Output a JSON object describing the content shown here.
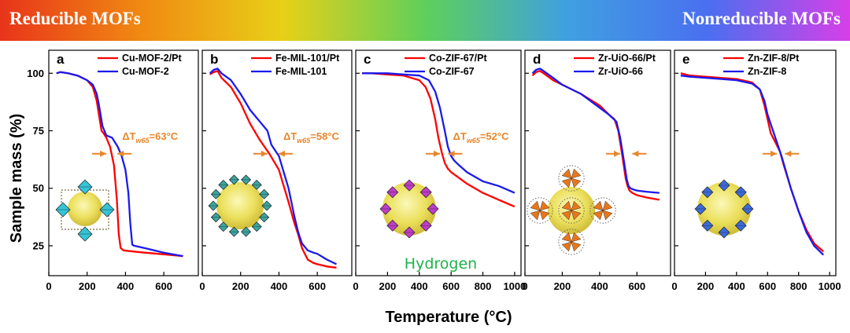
{
  "banner": {
    "left_label": "Reducible MOFs",
    "right_label": "Nonreducible MOFs",
    "gradient": [
      "#e8341a",
      "#f08a12",
      "#e8d018",
      "#5ed05a",
      "#3fa0e0",
      "#4a6ff0",
      "#d73fe8"
    ]
  },
  "colors": {
    "pt_series": "#ff0000",
    "plain_series": "#1a1aee",
    "delta": "#e8862a",
    "hydrogen": "#1fb24a"
  },
  "shared_y_axis_label": "Sample mass (%)",
  "shared_x_axis_label": "Temperature (°C)",
  "gas_label": "Hydrogen",
  "chart_data": [
    {
      "panel": "a",
      "type": "line",
      "xlim": [
        0,
        780
      ],
      "ylim": [
        12,
        110
      ],
      "xticks": [
        0,
        200,
        400,
        600
      ],
      "yticks": [
        25,
        50,
        75,
        100
      ],
      "delta_t": {
        "label": "ΔT",
        "sub": "w65",
        "value": "=63°C",
        "y": 65,
        "x_left": 300,
        "x_right": 358
      },
      "series": [
        {
          "name": "Cu-MOF-2/Pt",
          "x": [
            40,
            60,
            100,
            150,
            200,
            230,
            250,
            265,
            275,
            285,
            300,
            320,
            340,
            355,
            365,
            375,
            390,
            420,
            500,
            600,
            700
          ],
          "y": [
            100,
            100.5,
            100,
            99,
            97,
            94,
            88,
            80,
            75,
            74,
            72,
            68,
            60,
            45,
            30,
            24,
            23,
            22.7,
            22,
            21.3,
            20.5
          ]
        },
        {
          "name": "Cu-MOF-2",
          "x": [
            40,
            60,
            100,
            150,
            200,
            230,
            250,
            260,
            270,
            280,
            300,
            330,
            360,
            380,
            400,
            415,
            425,
            435,
            445,
            500,
            600,
            700
          ],
          "y": [
            100,
            100.5,
            100,
            99,
            97,
            95,
            91,
            87,
            82,
            77,
            73,
            72,
            68,
            64,
            58,
            48,
            35,
            25.5,
            25,
            24,
            22,
            20.5
          ]
        }
      ]
    },
    {
      "panel": "b",
      "type": "line",
      "xlim": [
        0,
        780
      ],
      "ylim": [
        12,
        110
      ],
      "xticks": [
        0,
        200,
        400,
        600
      ],
      "yticks": [
        25,
        50,
        75,
        100
      ],
      "delta_t": {
        "label": "ΔT",
        "sub": "w65",
        "value": "=58°C",
        "y": 65,
        "x_left": 340,
        "x_right": 398
      },
      "series": [
        {
          "name": "Fe-MIL-101/Pt",
          "x": [
            40,
            60,
            80,
            100,
            150,
            200,
            250,
            300,
            350,
            400,
            450,
            480,
            500,
            520,
            550,
            580,
            600,
            650,
            700
          ],
          "y": [
            99.5,
            100.5,
            101,
            98,
            94,
            87,
            78,
            71,
            65,
            58,
            44,
            35,
            30,
            24,
            19,
            17.5,
            17,
            16,
            15.5
          ]
        },
        {
          "name": "Fe-MIL-101",
          "x": [
            40,
            60,
            80,
            100,
            150,
            200,
            250,
            300,
            340,
            360,
            400,
            450,
            480,
            500,
            520,
            550,
            580,
            600,
            650,
            700
          ],
          "y": [
            100,
            101.5,
            102,
            100,
            97,
            91,
            84,
            79,
            75,
            69,
            64,
            50,
            38,
            31,
            26,
            23,
            22,
            21.5,
            19,
            17
          ]
        }
      ]
    },
    {
      "panel": "c",
      "type": "line",
      "xlim": [
        0,
        1040
      ],
      "ylim": [
        12,
        110
      ],
      "xticks": [
        0,
        200,
        400,
        600,
        800,
        1000
      ],
      "yticks": [
        25,
        50,
        75,
        100
      ],
      "delta_t": {
        "label": "ΔT",
        "sub": "w65",
        "value": "=52°C",
        "y": 65,
        "x_left": 530,
        "x_right": 582
      },
      "series": [
        {
          "name": "Co-ZIF-67/Pt",
          "x": [
            40,
            100,
            200,
            300,
            400,
            440,
            470,
            500,
            520,
            540,
            560,
            580,
            600,
            700,
            800,
            900,
            1000
          ],
          "y": [
            100,
            100,
            99.5,
            99,
            97,
            94,
            89,
            80,
            72,
            66,
            61,
            58.5,
            57,
            52,
            48,
            45,
            42
          ]
        },
        {
          "name": "Co-ZIF-67",
          "x": [
            40,
            100,
            200,
            300,
            400,
            460,
            500,
            530,
            560,
            580,
            600,
            620,
            650,
            700,
            800,
            900,
            1000
          ],
          "y": [
            100,
            100,
            100,
            99.5,
            99,
            97,
            92,
            85,
            75,
            68,
            64,
            62,
            60,
            57,
            53,
            51,
            48
          ]
        }
      ]
    },
    {
      "panel": "d",
      "type": "line",
      "xlim": [
        0,
        780
      ],
      "ylim": [
        12,
        110
      ],
      "xticks": [
        0,
        200,
        400,
        600
      ],
      "yticks": [
        25,
        50,
        75,
        100
      ],
      "delta_t": {
        "label": "",
        "sub": "",
        "value": "",
        "y": 65,
        "x_left": 510,
        "x_right": 575
      },
      "series": [
        {
          "name": "Zr-UiO-66/Pt",
          "x": [
            40,
            60,
            80,
            100,
            150,
            200,
            300,
            400,
            450,
            480,
            500,
            520,
            540,
            550,
            560,
            575,
            600,
            650,
            720
          ],
          "y": [
            99,
            100.5,
            101,
            100,
            97,
            95,
            91,
            86,
            82,
            80,
            75,
            65,
            54,
            51,
            49,
            48,
            47,
            46,
            45
          ]
        },
        {
          "name": "Zr-UiO-66",
          "x": [
            40,
            60,
            80,
            100,
            150,
            200,
            300,
            400,
            450,
            490,
            510,
            530,
            545,
            555,
            565,
            580,
            600,
            650,
            720
          ],
          "y": [
            100,
            101.5,
            102,
            101,
            98,
            95,
            91,
            85,
            82,
            79,
            72,
            62,
            54,
            51,
            50,
            49.5,
            49,
            48.5,
            48
          ]
        }
      ]
    },
    {
      "panel": "e",
      "type": "line",
      "xlim": [
        0,
        1040
      ],
      "ylim": [
        12,
        110
      ],
      "xticks": [
        0,
        200,
        400,
        600,
        800,
        1000
      ],
      "yticks": [
        25,
        50,
        75,
        100
      ],
      "delta_t": {
        "label": "",
        "sub": "",
        "value": "",
        "y": 65,
        "x_left": 660,
        "x_right": 712
      },
      "series": [
        {
          "name": "Zn-ZIF-8/Pt",
          "x": [
            40,
            100,
            200,
            300,
            400,
            500,
            550,
            580,
            600,
            620,
            650,
            680,
            700,
            750,
            800,
            850,
            900,
            960
          ],
          "y": [
            100,
            99,
            98.5,
            98,
            97.5,
            96,
            93,
            86,
            80,
            74,
            70,
            66,
            61,
            50,
            40,
            32,
            26,
            22.5
          ]
        },
        {
          "name": "Zn-ZIF-8",
          "x": [
            40,
            100,
            200,
            300,
            400,
            500,
            550,
            580,
            600,
            630,
            660,
            690,
            720,
            750,
            800,
            850,
            900,
            960
          ],
          "y": [
            99,
            98.5,
            98,
            97.5,
            97,
            95.5,
            93,
            88,
            82,
            76,
            70,
            64,
            57,
            50,
            40,
            31,
            25,
            21
          ]
        }
      ]
    }
  ]
}
